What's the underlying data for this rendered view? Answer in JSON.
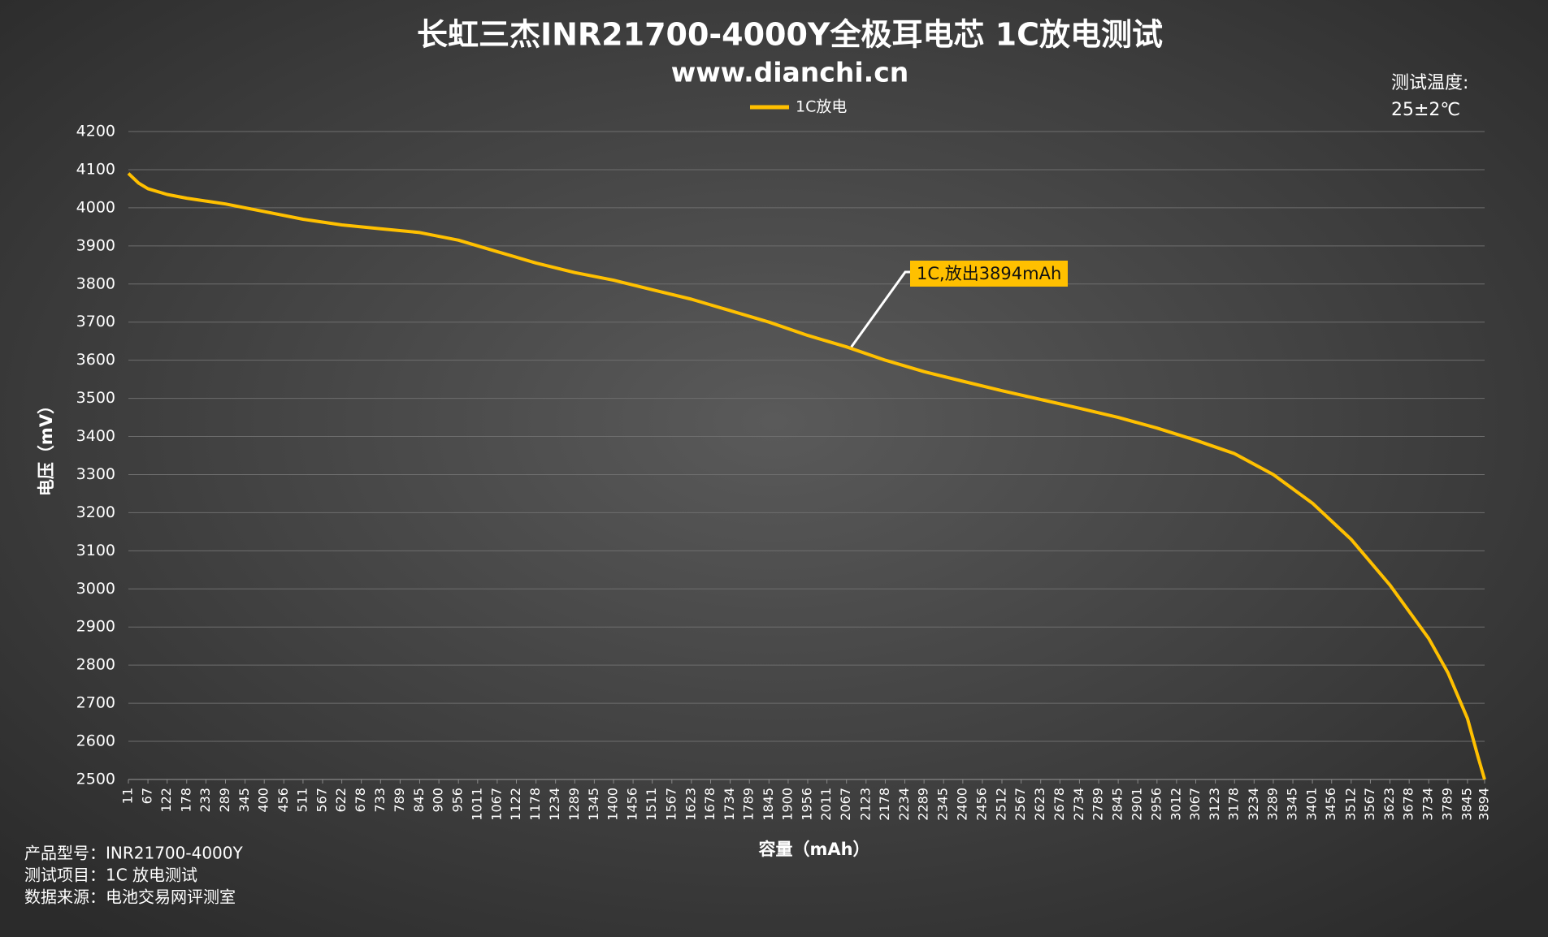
{
  "chart_data": {
    "type": "line",
    "title": "长虹三杰INR21700-4000Y全极耳电芯 1C放电测试",
    "subtitle": "www.dianchi.cn",
    "condition_label": "测试温度:",
    "condition_value": "25±2℃",
    "ylabel": "电压（mV）",
    "xlabel": "容量（mAh）",
    "notes": [
      "产品型号：INR21700-4000Y",
      "测试项目：1C 放电测试",
      "数据来源：电池交易网评测室"
    ],
    "annotation": "1C,放出3894mAh",
    "x": [
      11,
      40,
      67,
      122,
      178,
      289,
      400,
      511,
      622,
      733,
      845,
      956,
      1067,
      1178,
      1289,
      1400,
      1511,
      1623,
      1734,
      1845,
      1956,
      2067,
      2178,
      2289,
      2400,
      2512,
      2623,
      2734,
      2845,
      2956,
      3067,
      3178,
      3289,
      3401,
      3512,
      3623,
      3734,
      3789,
      3845,
      3875,
      3894
    ],
    "series": [
      {
        "name": "1C放电",
        "color": "#ffc000",
        "values": [
          4090,
          4065,
          4050,
          4035,
          4025,
          4010,
          3990,
          3970,
          3955,
          3945,
          3935,
          3915,
          3885,
          3855,
          3830,
          3810,
          3785,
          3760,
          3730,
          3700,
          3665,
          3635,
          3600,
          3570,
          3545,
          3520,
          3497,
          3474,
          3450,
          3422,
          3390,
          3355,
          3300,
          3225,
          3130,
          3010,
          2870,
          2780,
          2660,
          2560,
          2500
        ]
      }
    ],
    "xlim": [
      11,
      3894
    ],
    "xticks": [
      11,
      67,
      122,
      178,
      233,
      289,
      345,
      400,
      456,
      511,
      567,
      622,
      678,
      733,
      789,
      845,
      900,
      956,
      1011,
      1067,
      1122,
      1178,
      1234,
      1289,
      1345,
      1400,
      1456,
      1511,
      1567,
      1623,
      1678,
      1734,
      1789,
      1845,
      1900,
      1956,
      2011,
      2067,
      2123,
      2178,
      2234,
      2289,
      2345,
      2400,
      2456,
      2512,
      2567,
      2623,
      2678,
      2734,
      2789,
      2845,
      2901,
      2956,
      3012,
      3067,
      3123,
      3178,
      3234,
      3289,
      3345,
      3401,
      3456,
      3512,
      3567,
      3623,
      3678,
      3734,
      3789,
      3845,
      3894
    ],
    "ylim": [
      2500,
      4200
    ],
    "yticks": [
      2500,
      2600,
      2700,
      2800,
      2900,
      3000,
      3100,
      3200,
      3300,
      3400,
      3500,
      3600,
      3700,
      3800,
      3900,
      4000,
      4100,
      4200
    ],
    "grid": true,
    "legend": "top"
  }
}
